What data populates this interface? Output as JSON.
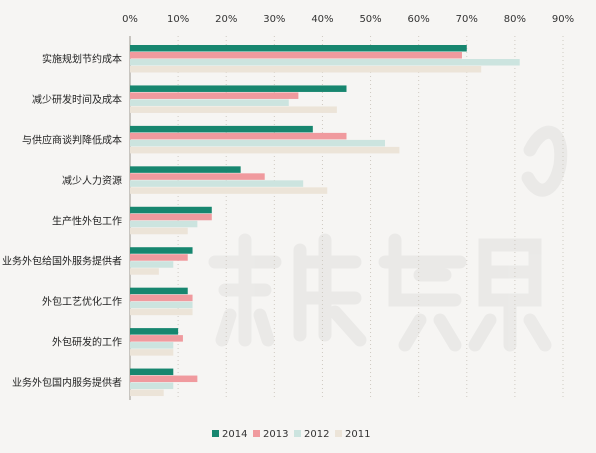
{
  "chart_data": {
    "type": "bar",
    "orientation": "horizontal",
    "categories": [
      "实施规划节约成本",
      "减少研发时间及成本",
      "与供应商谈判降低成本",
      "减少人力资源",
      "生产性外包工作",
      "业务外包给国外服务提供者",
      "外包工艺优化工作",
      "外包研发的工作",
      "业务外包国内服务提供者"
    ],
    "series": [
      {
        "name": "2014",
        "color": "#17866f",
        "values": [
          70,
          45,
          38,
          23,
          17,
          13,
          12,
          10,
          9
        ]
      },
      {
        "name": "2013",
        "color": "#f09a9e",
        "values": [
          69,
          35,
          45,
          28,
          17,
          12,
          13,
          11,
          14
        ]
      },
      {
        "name": "2012",
        "color": "#cce4df",
        "values": [
          81,
          33,
          53,
          36,
          14,
          9,
          13,
          9,
          9
        ]
      },
      {
        "name": "2011",
        "color": "#ece4d8",
        "values": [
          73,
          43,
          56,
          41,
          12,
          6,
          13,
          9,
          7
        ]
      }
    ],
    "xticks": [
      "0%",
      "10%",
      "20%",
      "30%",
      "40%",
      "50%",
      "60%",
      "70%",
      "80%",
      "90%"
    ],
    "xlim": [
      0,
      90
    ],
    "x_axis_position": "top",
    "grid": true,
    "legend_position": "bottom-center",
    "title": "",
    "xlabel": "",
    "ylabel": ""
  },
  "watermark": "新康界"
}
